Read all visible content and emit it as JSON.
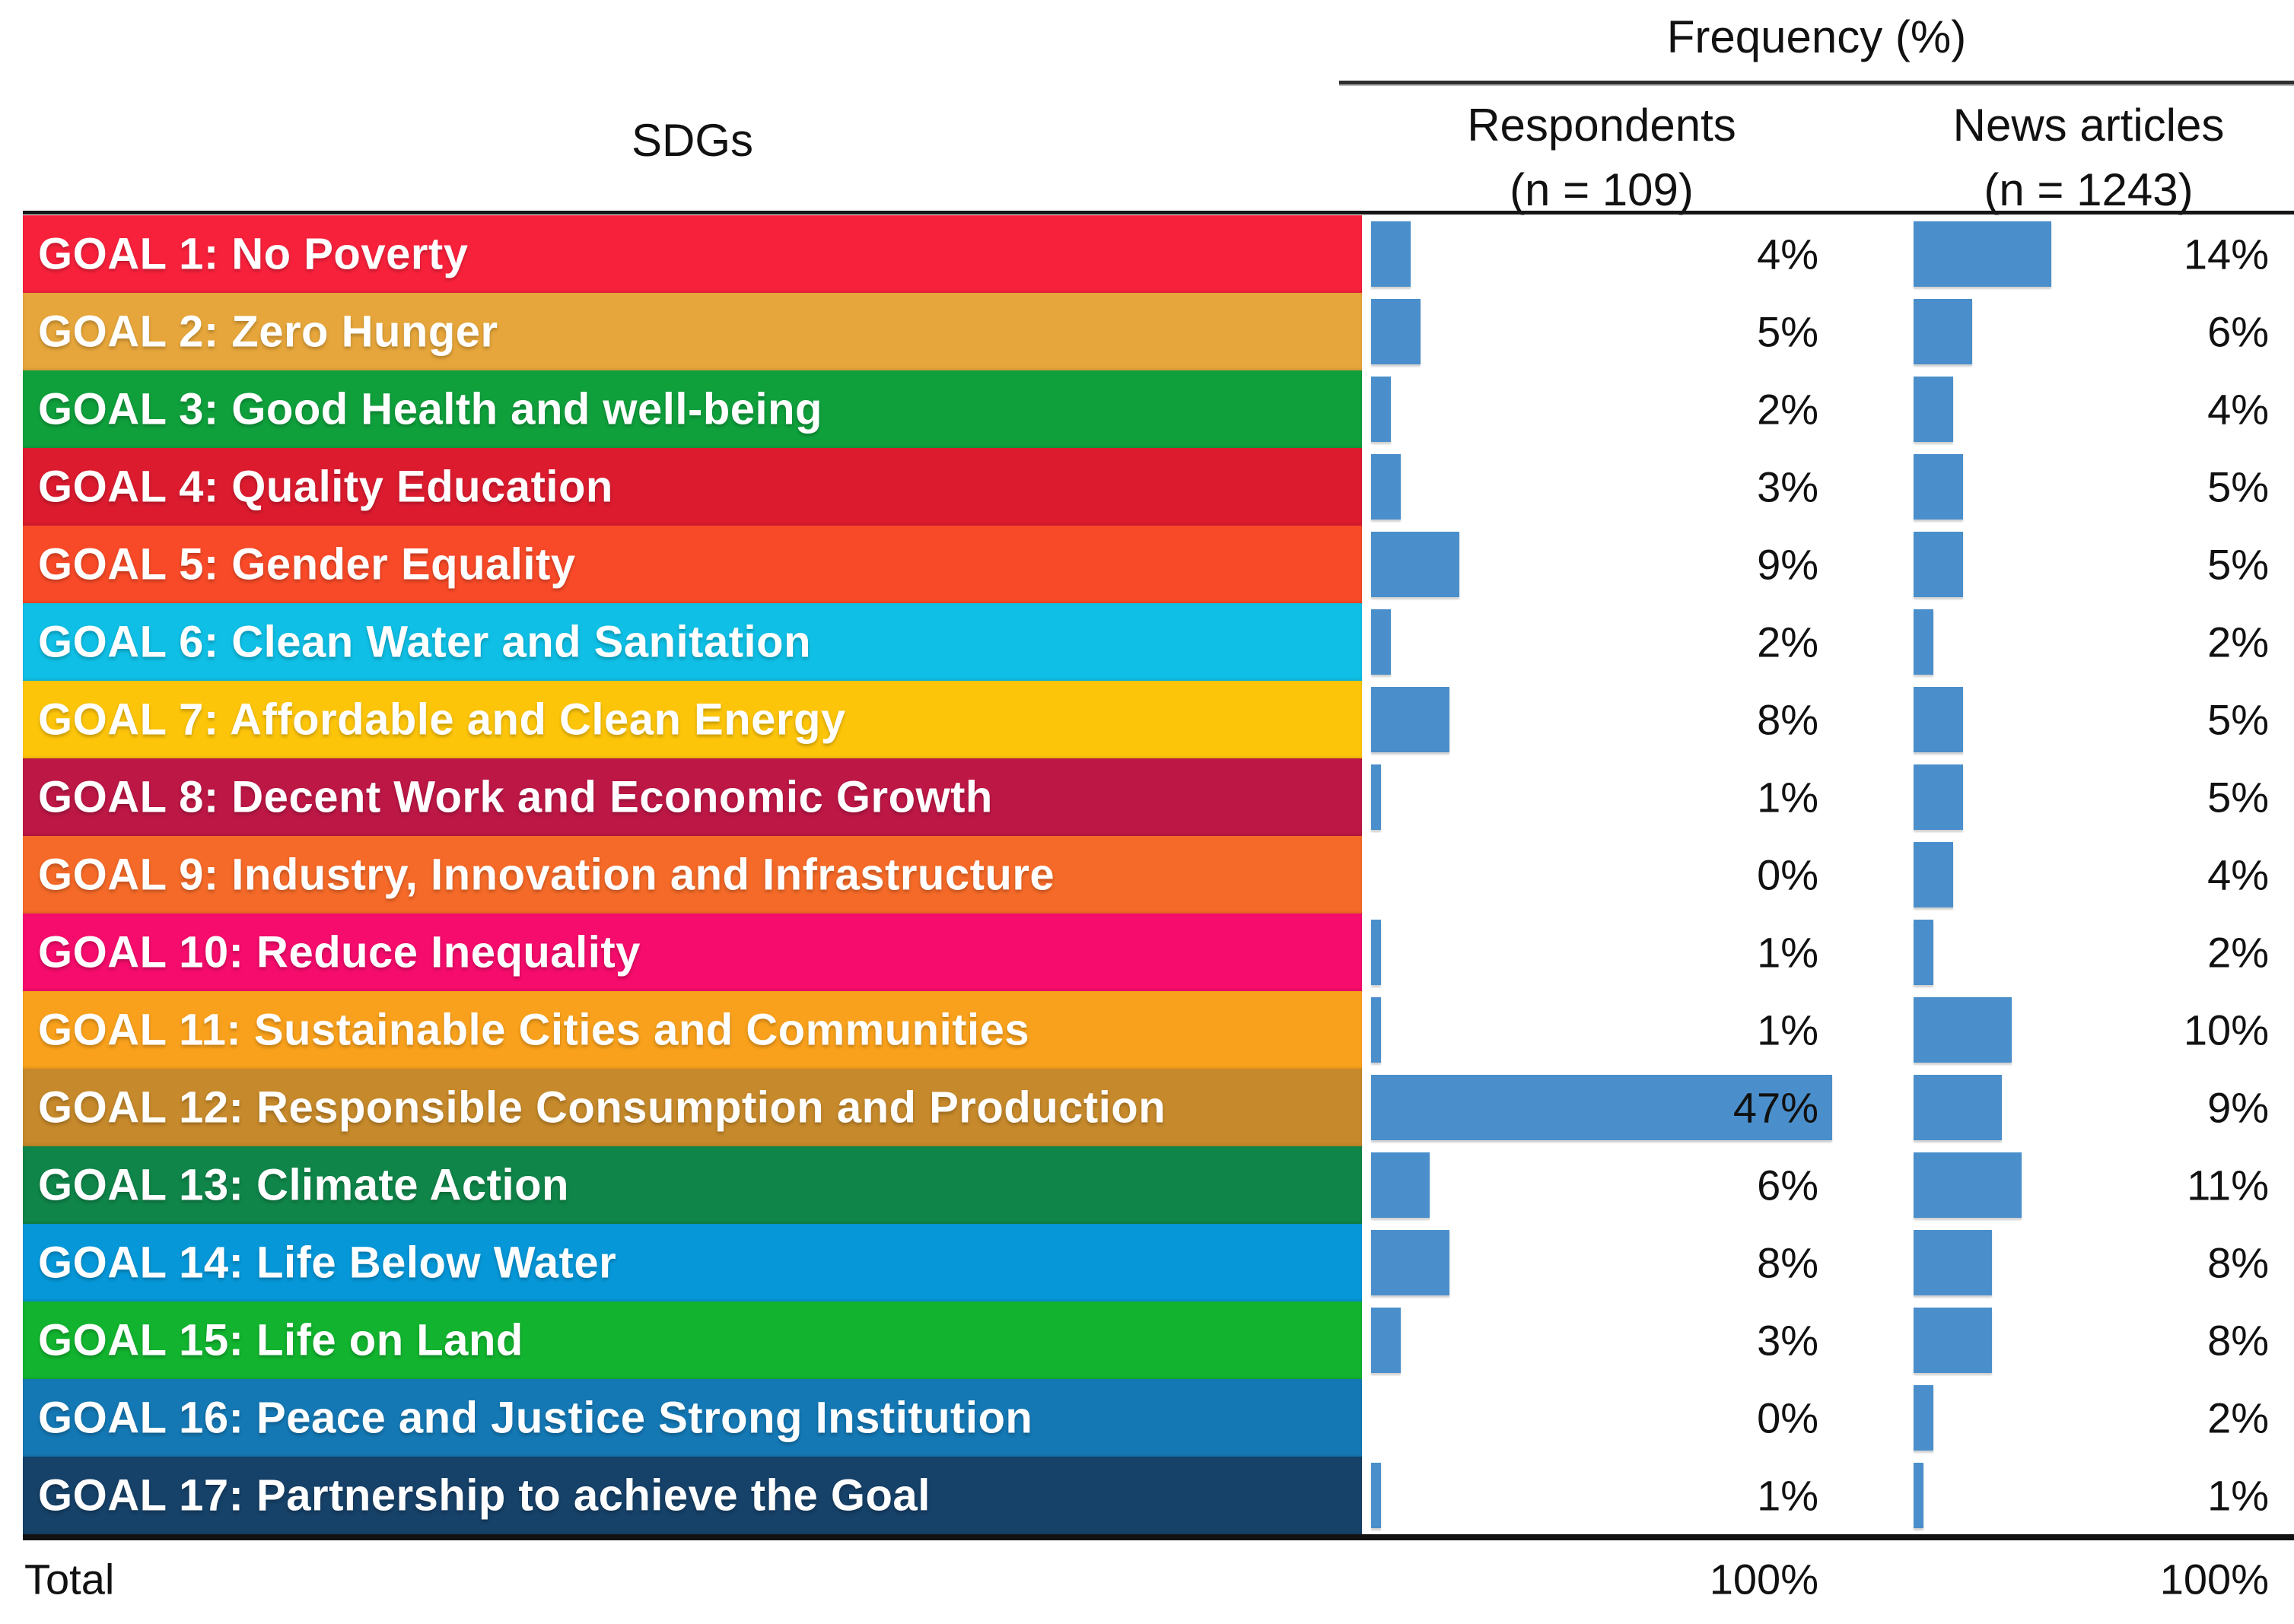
{
  "table": {
    "sdgs_header": "SDGs",
    "frequency_header": "Frequency (%)",
    "columns": [
      {
        "label": "Respondents",
        "sub": "(n = 109)"
      },
      {
        "label": "News articles",
        "sub": "(n = 1243)"
      }
    ],
    "rows": [
      {
        "label": "GOAL 1: No Poverty",
        "color": "#F8213C",
        "respondents_pct": 4,
        "respondents_label": "4%",
        "news_pct": 14,
        "news_label": "14%"
      },
      {
        "label": "GOAL 2: Zero Hunger",
        "color": "#E6A63B",
        "respondents_pct": 5,
        "respondents_label": "5%",
        "news_pct": 6,
        "news_label": "6%"
      },
      {
        "label": "GOAL 3: Good Health and well-being",
        "color": "#0FA03C",
        "respondents_pct": 2,
        "respondents_label": "2%",
        "news_pct": 4,
        "news_label": "4%"
      },
      {
        "label": "GOAL 4: Quality Education",
        "color": "#DC1B2F",
        "respondents_pct": 3,
        "respondents_label": "3%",
        "news_pct": 5,
        "news_label": "5%"
      },
      {
        "label": "GOAL 5: Gender Equality",
        "color": "#F84A28",
        "respondents_pct": 9,
        "respondents_label": "9%",
        "news_pct": 5,
        "news_label": "5%"
      },
      {
        "label": "GOAL 6: Clean Water and Sanitation",
        "color": "#0FBFE5",
        "respondents_pct": 2,
        "respondents_label": "2%",
        "news_pct": 2,
        "news_label": "2%"
      },
      {
        "label": "GOAL 7: Affordable and Clean Energy",
        "color": "#FDC50A",
        "respondents_pct": 8,
        "respondents_label": "8%",
        "news_pct": 5,
        "news_label": "5%"
      },
      {
        "label": "GOAL 8: Decent Work and Economic Growth",
        "color": "#BD1746",
        "respondents_pct": 1,
        "respondents_label": "1%",
        "news_pct": 5,
        "news_label": "5%"
      },
      {
        "label": "GOAL 9: Industry, Innovation and Infrastructure",
        "color": "#F56A28",
        "respondents_pct": 0,
        "respondents_label": "0%",
        "news_pct": 4,
        "news_label": "4%"
      },
      {
        "label": "GOAL 10: Reduce Inequality",
        "color": "#F50C6C",
        "respondents_pct": 1,
        "respondents_label": "1%",
        "news_pct": 2,
        "news_label": "2%"
      },
      {
        "label": "GOAL 11: Sustainable Cities and Communities",
        "color": "#F9A11C",
        "respondents_pct": 1,
        "respondents_label": "1%",
        "news_pct": 10,
        "news_label": "10%"
      },
      {
        "label": "GOAL 12: Responsible Consumption and Production",
        "color": "#C6892B",
        "respondents_pct": 47,
        "respondents_label": "47%",
        "news_pct": 9,
        "news_label": "9%"
      },
      {
        "label": "GOAL 13: Climate Action",
        "color": "#0F8549",
        "respondents_pct": 6,
        "respondents_label": "6%",
        "news_pct": 11,
        "news_label": "11%"
      },
      {
        "label": "GOAL 14: Life Below Water",
        "color": "#0697D8",
        "respondents_pct": 8,
        "respondents_label": "8%",
        "news_pct": 8,
        "news_label": "8%"
      },
      {
        "label": "GOAL 15: Life on Land",
        "color": "#12B42F",
        "respondents_pct": 3,
        "respondents_label": "3%",
        "news_pct": 8,
        "news_label": "8%"
      },
      {
        "label": "GOAL 16: Peace and Justice Strong Institution",
        "color": "#1478B4",
        "respondents_pct": 0,
        "respondents_label": "0%",
        "news_pct": 2,
        "news_label": "2%"
      },
      {
        "label": "GOAL 17: Partnership to achieve the Goal",
        "color": "#164168",
        "respondents_pct": 1,
        "respondents_label": "1%",
        "news_pct": 1,
        "news_label": "1%"
      }
    ],
    "total": {
      "label": "Total",
      "respondents_label": "100%",
      "news_label": "100%"
    }
  },
  "colors": {
    "bar": "#4A8FCB"
  },
  "chart_data": {
    "type": "bar",
    "title": "Frequency (%)",
    "xlabel": "SDGs",
    "value_format": "percent",
    "orientation": "horizontal",
    "grid": false,
    "legend_position": "column-headers",
    "categories": [
      "GOAL 1: No Poverty",
      "GOAL 2: Zero Hunger",
      "GOAL 3: Good Health and well-being",
      "GOAL 4: Quality Education",
      "GOAL 5: Gender Equality",
      "GOAL 6: Clean Water and Sanitation",
      "GOAL 7: Affordable and Clean Energy",
      "GOAL 8: Decent Work and Economic Growth",
      "GOAL 9: Industry, Innovation and Infrastructure",
      "GOAL 10: Reduce Inequality",
      "GOAL 11: Sustainable Cities and Communities",
      "GOAL 12: Responsible Consumption and Production",
      "GOAL 13: Climate Action",
      "GOAL 14: Life Below Water",
      "GOAL 15: Life on Land",
      "GOAL 16: Peace and Justice Strong Institution",
      "GOAL 17: Partnership to achieve the Goal"
    ],
    "series": [
      {
        "name": "Respondents (n = 109)",
        "values": [
          4,
          5,
          2,
          3,
          9,
          2,
          8,
          1,
          0,
          1,
          1,
          47,
          6,
          8,
          3,
          0,
          1
        ],
        "total": 100
      },
      {
        "name": "News articles (n = 1243)",
        "values": [
          14,
          6,
          4,
          5,
          5,
          2,
          5,
          5,
          4,
          2,
          10,
          9,
          11,
          8,
          8,
          2,
          1
        ],
        "total": 100
      }
    ]
  }
}
